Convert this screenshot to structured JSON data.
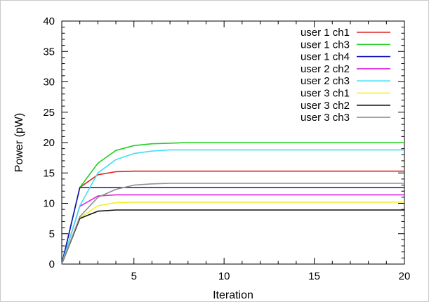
{
  "chart_data": {
    "type": "line",
    "xlabel": "Iteration",
    "ylabel": "Power (pW)",
    "xlim": [
      1,
      20
    ],
    "ylim": [
      0,
      40
    ],
    "xticks": [
      5,
      10,
      15,
      20
    ],
    "yticks": [
      0,
      5,
      10,
      15,
      20,
      25,
      30,
      35,
      40
    ],
    "grid": false,
    "legend": "top-right",
    "x": [
      1,
      2,
      3,
      4,
      5,
      6,
      7,
      8,
      9,
      10,
      11,
      12,
      13,
      14,
      15,
      16,
      17,
      18,
      19,
      20
    ],
    "series": [
      {
        "name": "user 1 ch1",
        "color": "#e02020",
        "values": [
          0,
          12.6,
          14.7,
          15.2,
          15.3,
          15.3,
          15.3,
          15.3,
          15.3,
          15.3,
          15.3,
          15.3,
          15.3,
          15.3,
          15.3,
          15.3,
          15.3,
          15.3,
          15.3,
          15.3
        ]
      },
      {
        "name": "user 1 ch3",
        "color": "#20d020",
        "values": [
          0,
          12.6,
          16.6,
          18.7,
          19.5,
          19.8,
          19.9,
          20.0,
          20.0,
          20.0,
          20.0,
          20.0,
          20.0,
          20.0,
          20.0,
          20.0,
          20.0,
          20.0,
          20.0,
          20.0
        ]
      },
      {
        "name": "user 1 ch4",
        "color": "#1010c0",
        "values": [
          0,
          12.6,
          12.6,
          12.6,
          12.6,
          12.6,
          12.6,
          12.6,
          12.6,
          12.6,
          12.6,
          12.6,
          12.6,
          12.6,
          12.6,
          12.6,
          12.6,
          12.6,
          12.6,
          12.6
        ]
      },
      {
        "name": "user 2 ch2",
        "color": "#e020e0",
        "values": [
          0,
          9.5,
          11.2,
          11.4,
          11.4,
          11.4,
          11.4,
          11.4,
          11.4,
          11.4,
          11.4,
          11.4,
          11.4,
          11.4,
          11.4,
          11.4,
          11.4,
          11.4,
          11.4,
          11.4
        ]
      },
      {
        "name": "user 2 ch3",
        "color": "#40e0f0",
        "values": [
          0,
          9.6,
          15.0,
          17.2,
          18.2,
          18.6,
          18.8,
          18.8,
          18.8,
          18.8,
          18.8,
          18.8,
          18.8,
          18.8,
          18.8,
          18.8,
          18.8,
          18.8,
          18.8,
          18.8
        ]
      },
      {
        "name": "user 3 ch1",
        "color": "#f0f020",
        "values": [
          0,
          7.6,
          9.6,
          10.1,
          10.2,
          10.2,
          10.2,
          10.2,
          10.2,
          10.2,
          10.2,
          10.2,
          10.2,
          10.2,
          10.2,
          10.2,
          10.2,
          10.2,
          10.2,
          10.2
        ]
      },
      {
        "name": "user 3 ch2",
        "color": "#101010",
        "values": [
          0,
          7.5,
          8.7,
          8.9,
          8.9,
          8.9,
          8.9,
          8.9,
          8.9,
          8.9,
          8.9,
          8.9,
          8.9,
          8.9,
          8.9,
          8.9,
          8.9,
          8.9,
          8.9,
          8.9
        ]
      },
      {
        "name": "user 3 ch3",
        "color": "#909090",
        "values": [
          0,
          7.8,
          11.0,
          12.3,
          13.0,
          13.2,
          13.3,
          13.3,
          13.3,
          13.3,
          13.3,
          13.3,
          13.3,
          13.3,
          13.3,
          13.3,
          13.3,
          13.3,
          13.3,
          13.3
        ]
      }
    ]
  }
}
